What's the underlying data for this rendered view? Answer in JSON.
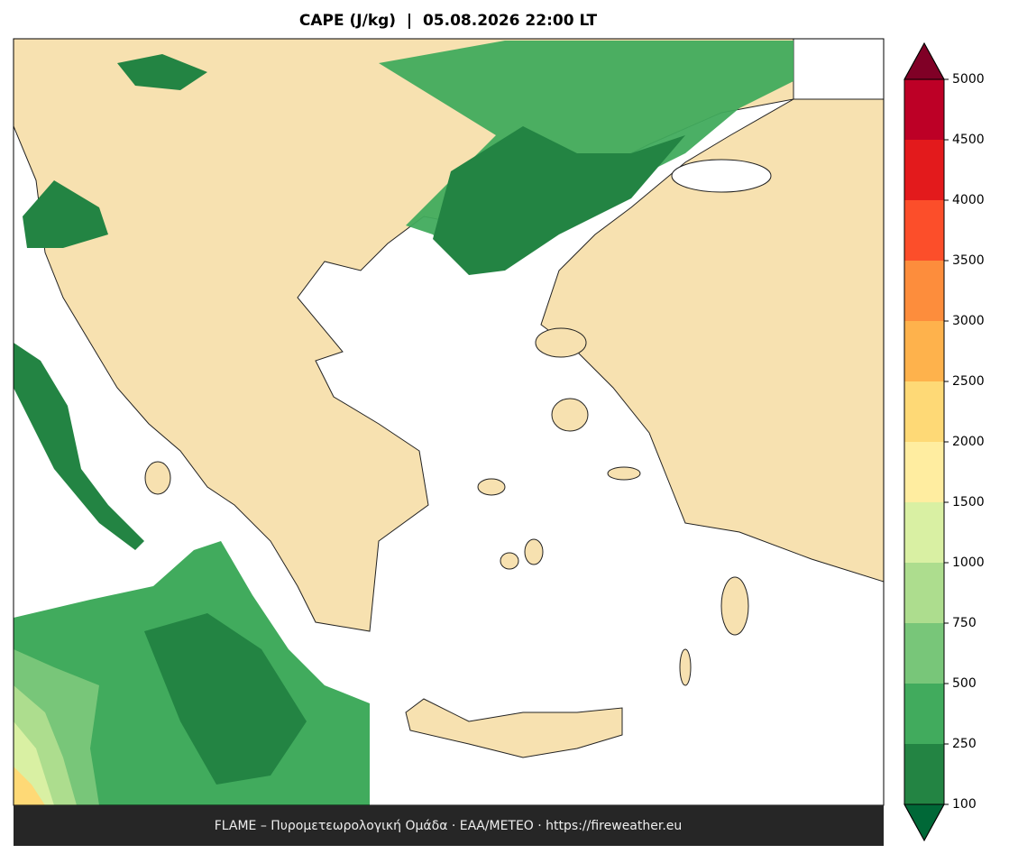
{
  "title": "CAPE (J/kg)  |  05.08.2026 22:00 LT",
  "footer": "FLAME – Πυρομετεωρολογική Ομάδα · ΕΑΑ/METEO · https://fireweather.eu",
  "colorbar": {
    "ticks": [
      100,
      250,
      500,
      750,
      1000,
      1500,
      2000,
      2500,
      3000,
      3500,
      4000,
      4500,
      5000
    ],
    "colors": [
      "#238443",
      "#41ab5d",
      "#78c679",
      "#addd8e",
      "#d9f0a3",
      "#ffeda0",
      "#fed976",
      "#feb24c",
      "#fd8d3c",
      "#fc4e2a",
      "#e31a1c",
      "#bd0026"
    ],
    "under_color": "#006837",
    "over_color": "#800026"
  }
}
